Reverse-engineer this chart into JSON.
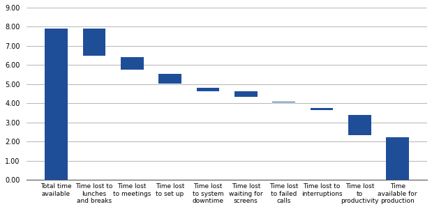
{
  "categories": [
    "Total time\navailable",
    "Time lost to\nlunches\nand breaks",
    "Time lost\nto meetings",
    "Time lost\nto set up",
    "Time lost\nto system\ndowntime",
    "Time lost\nwaiting for\nscreens",
    "Time lost\nto failed\ncalls",
    "Time lost to\ninterruptions",
    "Time lost\nto\nproductivity",
    "Time\navailable for\nproduction"
  ],
  "bar_bottoms": [
    0,
    6.5,
    5.75,
    5.05,
    4.65,
    4.35,
    4.05,
    3.65,
    2.35,
    0
  ],
  "bar_tops": [
    7.9,
    7.9,
    6.4,
    5.55,
    4.8,
    4.65,
    4.1,
    3.75,
    3.4,
    2.25
  ],
  "bar_color": "#1F4E99",
  "background_color": "#ffffff",
  "ylim": [
    0,
    9.0
  ],
  "yticks": [
    0.0,
    1.0,
    2.0,
    3.0,
    4.0,
    5.0,
    6.0,
    7.0,
    8.0,
    9.0
  ],
  "grid_color": "#999999",
  "tick_fontsize": 7,
  "label_fontsize": 6.5
}
